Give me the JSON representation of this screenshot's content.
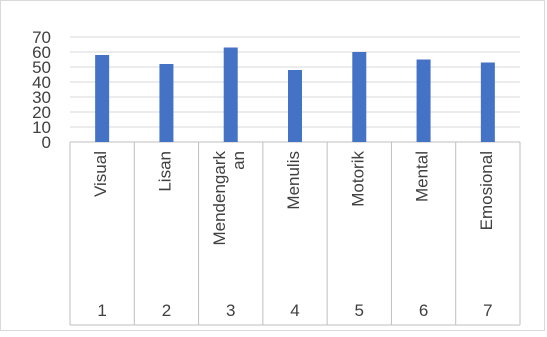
{
  "chart_data": {
    "type": "bar",
    "title": "",
    "xlabel": "",
    "ylabel": "",
    "ylim": [
      0,
      70
    ],
    "y_ticks": [
      "0",
      "10",
      "20",
      "30",
      "40",
      "50",
      "60",
      "70"
    ],
    "grid": true,
    "legend": "none",
    "categories": [
      {
        "number": "1",
        "label_lines": [
          "Visual"
        ]
      },
      {
        "number": "2",
        "label_lines": [
          "Lisan"
        ]
      },
      {
        "number": "3",
        "label_lines": [
          "Mendengark",
          "an"
        ]
      },
      {
        "number": "4",
        "label_lines": [
          "Menulis"
        ]
      },
      {
        "number": "5",
        "label_lines": [
          "Motorik"
        ]
      },
      {
        "number": "6",
        "label_lines": [
          "Mental"
        ]
      },
      {
        "number": "7",
        "label_lines": [
          "Emosional"
        ]
      }
    ],
    "values": [
      58,
      52,
      63,
      48,
      60,
      55,
      53
    ],
    "colors": {
      "bar": "#4472C4",
      "grid": "#d9d9d9",
      "axis": "#bfbfbf",
      "text": "#404040"
    }
  }
}
